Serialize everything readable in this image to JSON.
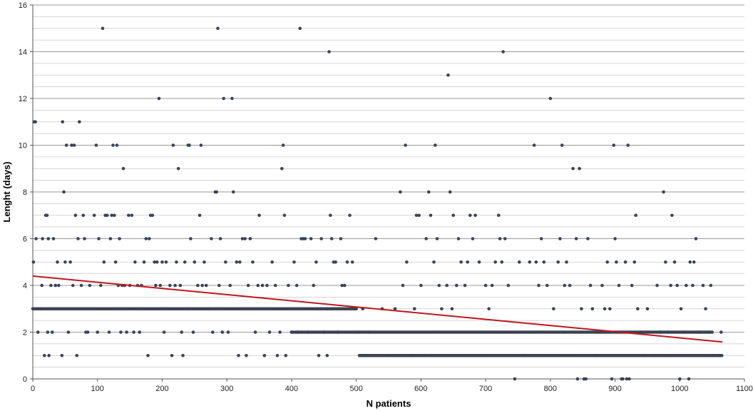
{
  "chart_data": {
    "type": "scatter",
    "title": "",
    "xlabel": "N patients",
    "ylabel": "Lenght (days)",
    "xlim": [
      0,
      1100
    ],
    "ylim": [
      0,
      16
    ],
    "x_ticks": [
      0,
      100,
      200,
      300,
      400,
      500,
      600,
      700,
      800,
      900,
      1000,
      1100
    ],
    "y_ticks": [
      0,
      2,
      4,
      6,
      8,
      10,
      12,
      14,
      16
    ],
    "minor_grid_step": 0.5,
    "grid": true,
    "legend": "none",
    "colors": {
      "points": "#3b4254",
      "trendline": "#c0161b",
      "major_grid": "#9a9a9a",
      "minor_grid": "#c8c8c8",
      "axis": "#555555"
    },
    "trendline": {
      "x": [
        0,
        1066
      ],
      "y": [
        4.4,
        1.58
      ]
    },
    "points": [
      [
        2,
        11
      ],
      [
        4,
        11
      ],
      [
        1,
        5
      ],
      [
        5,
        6
      ],
      [
        8,
        2
      ],
      [
        12,
        3
      ],
      [
        14,
        4
      ],
      [
        15,
        6
      ],
      [
        18,
        1
      ],
      [
        20,
        7
      ],
      [
        22,
        7
      ],
      [
        23,
        2
      ],
      [
        25,
        1
      ],
      [
        24,
        6
      ],
      [
        28,
        4
      ],
      [
        30,
        2
      ],
      [
        32,
        6
      ],
      [
        35,
        4
      ],
      [
        38,
        5
      ],
      [
        40,
        4
      ],
      [
        45,
        1
      ],
      [
        46,
        11
      ],
      [
        48,
        8
      ],
      [
        50,
        5
      ],
      [
        52,
        10
      ],
      [
        55,
        2
      ],
      [
        58,
        5
      ],
      [
        60,
        10
      ],
      [
        62,
        4
      ],
      [
        64,
        10
      ],
      [
        66,
        7
      ],
      [
        68,
        1
      ],
      [
        70,
        6
      ],
      [
        72,
        11
      ],
      [
        75,
        4
      ],
      [
        78,
        7
      ],
      [
        80,
        6
      ],
      [
        82,
        2
      ],
      [
        85,
        2
      ],
      [
        88,
        4
      ],
      [
        90,
        3
      ],
      [
        95,
        7
      ],
      [
        98,
        10
      ],
      [
        100,
        2
      ],
      [
        102,
        6
      ],
      [
        105,
        4
      ],
      [
        108,
        15
      ],
      [
        110,
        5
      ],
      [
        112,
        7
      ],
      [
        115,
        7
      ],
      [
        118,
        2
      ],
      [
        120,
        6
      ],
      [
        122,
        7
      ],
      [
        124,
        10
      ],
      [
        126,
        7
      ],
      [
        128,
        5
      ],
      [
        130,
        10
      ],
      [
        132,
        4
      ],
      [
        134,
        6
      ],
      [
        136,
        2
      ],
      [
        138,
        4
      ],
      [
        140,
        9
      ],
      [
        142,
        4
      ],
      [
        145,
        2
      ],
      [
        148,
        7
      ],
      [
        150,
        4
      ],
      [
        153,
        7
      ],
      [
        156,
        2
      ],
      [
        158,
        5
      ],
      [
        162,
        4
      ],
      [
        165,
        2
      ],
      [
        168,
        4
      ],
      [
        172,
        5
      ],
      [
        175,
        6
      ],
      [
        178,
        1
      ],
      [
        180,
        6
      ],
      [
        182,
        7
      ],
      [
        185,
        7
      ],
      [
        188,
        5
      ],
      [
        190,
        4
      ],
      [
        192,
        5
      ],
      [
        195,
        12
      ],
      [
        197,
        4
      ],
      [
        200,
        5
      ],
      [
        203,
        2
      ],
      [
        206,
        5
      ],
      [
        208,
        3
      ],
      [
        212,
        4
      ],
      [
        215,
        1
      ],
      [
        217,
        10
      ],
      [
        220,
        4
      ],
      [
        222,
        5
      ],
      [
        225,
        9
      ],
      [
        228,
        4
      ],
      [
        230,
        2
      ],
      [
        232,
        1
      ],
      [
        235,
        5
      ],
      [
        238,
        3
      ],
      [
        240,
        10
      ],
      [
        242,
        10
      ],
      [
        244,
        6
      ],
      [
        248,
        2
      ],
      [
        250,
        5
      ],
      [
        255,
        4
      ],
      [
        258,
        7
      ],
      [
        260,
        10
      ],
      [
        262,
        4
      ],
      [
        265,
        5
      ],
      [
        268,
        4
      ],
      [
        272,
        3
      ],
      [
        276,
        6
      ],
      [
        278,
        2
      ],
      [
        282,
        8
      ],
      [
        284,
        8
      ],
      [
        286,
        15
      ],
      [
        288,
        4
      ],
      [
        290,
        6
      ],
      [
        293,
        2
      ],
      [
        295,
        12
      ],
      [
        298,
        5
      ],
      [
        302,
        2
      ],
      [
        305,
        4
      ],
      [
        308,
        12
      ],
      [
        310,
        8
      ],
      [
        315,
        5
      ],
      [
        318,
        1
      ],
      [
        320,
        5
      ],
      [
        324,
        6
      ],
      [
        328,
        6
      ],
      [
        330,
        1
      ],
      [
        333,
        4
      ],
      [
        336,
        6
      ],
      [
        340,
        5
      ],
      [
        344,
        2
      ],
      [
        348,
        4
      ],
      [
        350,
        7
      ],
      [
        355,
        4
      ],
      [
        358,
        1
      ],
      [
        362,
        4
      ],
      [
        366,
        2
      ],
      [
        370,
        5
      ],
      [
        375,
        4
      ],
      [
        378,
        1
      ],
      [
        382,
        2
      ],
      [
        385,
        9
      ],
      [
        387,
        10
      ],
      [
        389,
        7
      ],
      [
        391,
        1
      ],
      [
        395,
        4
      ],
      [
        400,
        2
      ],
      [
        404,
        5
      ],
      [
        408,
        4
      ],
      [
        410,
        2
      ],
      [
        413,
        15
      ],
      [
        415,
        6
      ],
      [
        418,
        6
      ],
      [
        421,
        6
      ],
      [
        425,
        2
      ],
      [
        430,
        6
      ],
      [
        434,
        4
      ],
      [
        438,
        5
      ],
      [
        442,
        1
      ],
      [
        446,
        6
      ],
      [
        450,
        2
      ],
      [
        455,
        1
      ],
      [
        458,
        14
      ],
      [
        460,
        7
      ],
      [
        462,
        6
      ],
      [
        465,
        5
      ],
      [
        468,
        5
      ],
      [
        472,
        2
      ],
      [
        476,
        6
      ],
      [
        478,
        4
      ],
      [
        482,
        4
      ],
      [
        486,
        5
      ],
      [
        490,
        7
      ],
      [
        494,
        5
      ],
      [
        498,
        3
      ],
      [
        502,
        2
      ],
      [
        505,
        1
      ],
      [
        510,
        3
      ],
      [
        515,
        1
      ],
      [
        520,
        2
      ],
      [
        530,
        6
      ],
      [
        540,
        3
      ],
      [
        550,
        1
      ],
      [
        560,
        3
      ],
      [
        568,
        8
      ],
      [
        572,
        4
      ],
      [
        576,
        10
      ],
      [
        578,
        5
      ],
      [
        585,
        1
      ],
      [
        590,
        3
      ],
      [
        593,
        7
      ],
      [
        597,
        7
      ],
      [
        600,
        4
      ],
      [
        605,
        1
      ],
      [
        608,
        6
      ],
      [
        612,
        8
      ],
      [
        615,
        7
      ],
      [
        620,
        5
      ],
      [
        622,
        10
      ],
      [
        625,
        6
      ],
      [
        628,
        4
      ],
      [
        632,
        3
      ],
      [
        640,
        4
      ],
      [
        642,
        13
      ],
      [
        645,
        8
      ],
      [
        648,
        3
      ],
      [
        650,
        7
      ],
      [
        655,
        4
      ],
      [
        658,
        6
      ],
      [
        662,
        5
      ],
      [
        668,
        4
      ],
      [
        672,
        5
      ],
      [
        676,
        7
      ],
      [
        680,
        6
      ],
      [
        684,
        7
      ],
      [
        690,
        5
      ],
      [
        695,
        1
      ],
      [
        700,
        4
      ],
      [
        705,
        3
      ],
      [
        710,
        4
      ],
      [
        715,
        5
      ],
      [
        720,
        7
      ],
      [
        722,
        6
      ],
      [
        725,
        5
      ],
      [
        727,
        14
      ],
      [
        730,
        6
      ],
      [
        735,
        4
      ],
      [
        745,
        0
      ],
      [
        752,
        5
      ],
      [
        760,
        1
      ],
      [
        768,
        5
      ],
      [
        775,
        10
      ],
      [
        778,
        5
      ],
      [
        782,
        4
      ],
      [
        786,
        6
      ],
      [
        790,
        5
      ],
      [
        795,
        4
      ],
      [
        800,
        12
      ],
      [
        805,
        3
      ],
      [
        812,
        5
      ],
      [
        815,
        6
      ],
      [
        818,
        10
      ],
      [
        822,
        4
      ],
      [
        825,
        5
      ],
      [
        830,
        4
      ],
      [
        835,
        9
      ],
      [
        840,
        6
      ],
      [
        842,
        0
      ],
      [
        845,
        9
      ],
      [
        848,
        3
      ],
      [
        852,
        0
      ],
      [
        855,
        0
      ],
      [
        858,
        6
      ],
      [
        862,
        4
      ],
      [
        865,
        3
      ],
      [
        870,
        1
      ],
      [
        875,
        2
      ],
      [
        880,
        4
      ],
      [
        884,
        3
      ],
      [
        888,
        5
      ],
      [
        892,
        3
      ],
      [
        895,
        0
      ],
      [
        898,
        10
      ],
      [
        900,
        6
      ],
      [
        902,
        5
      ],
      [
        906,
        4
      ],
      [
        910,
        0
      ],
      [
        912,
        0
      ],
      [
        916,
        5
      ],
      [
        918,
        0
      ],
      [
        920,
        10
      ],
      [
        922,
        0
      ],
      [
        926,
        4
      ],
      [
        930,
        5
      ],
      [
        932,
        7
      ],
      [
        935,
        3
      ],
      [
        940,
        2
      ],
      [
        945,
        1
      ],
      [
        950,
        3
      ],
      [
        960,
        1
      ],
      [
        965,
        4
      ],
      [
        970,
        2
      ],
      [
        975,
        8
      ],
      [
        978,
        5
      ],
      [
        982,
        2
      ],
      [
        986,
        4
      ],
      [
        988,
        7
      ],
      [
        992,
        5
      ],
      [
        996,
        4
      ],
      [
        1000,
        0
      ],
      [
        1002,
        3
      ],
      [
        1006,
        2
      ],
      [
        1010,
        4
      ],
      [
        1014,
        0
      ],
      [
        1016,
        5
      ],
      [
        1020,
        4
      ],
      [
        1022,
        5
      ],
      [
        1025,
        6
      ],
      [
        1028,
        2
      ],
      [
        1032,
        2
      ],
      [
        1036,
        4
      ],
      [
        1040,
        3
      ],
      [
        1045,
        2
      ],
      [
        1048,
        4
      ],
      [
        1052,
        1
      ],
      [
        1060,
        1
      ],
      [
        1064,
        2
      ]
    ],
    "dense_bands": [
      {
        "y": 3,
        "from": 0,
        "to": 500
      },
      {
        "y": 2,
        "from": 400,
        "to": 1050
      },
      {
        "y": 1,
        "from": 505,
        "to": 1066
      }
    ]
  }
}
